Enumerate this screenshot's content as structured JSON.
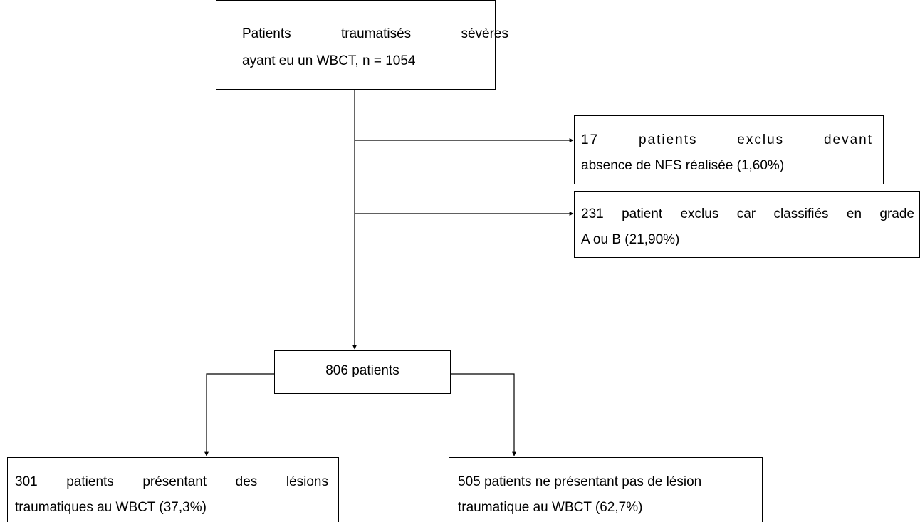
{
  "nodes": [
    {
      "lines": [
        "Patients traumatisés sévères",
        "ayant eu un WBCT, n = 1054"
      ]
    },
    {
      "lines": [
        "17 patients exclus devant",
        "absence de NFS réalisée (1,60%)"
      ]
    },
    {
      "lines": [
        "231 patient exclus car classifiés en grade",
        "A ou B (21,90%)"
      ]
    },
    {
      "lines": [
        "806 patients"
      ]
    },
    {
      "lines": [
        "301 patients présentant des lésions",
        "traumatiques au WBCT (37,3%)"
      ]
    },
    {
      "lines": [
        "505 patients ne présentant pas de lésion",
        "traumatique au WBCT (62,7%)"
      ]
    }
  ]
}
